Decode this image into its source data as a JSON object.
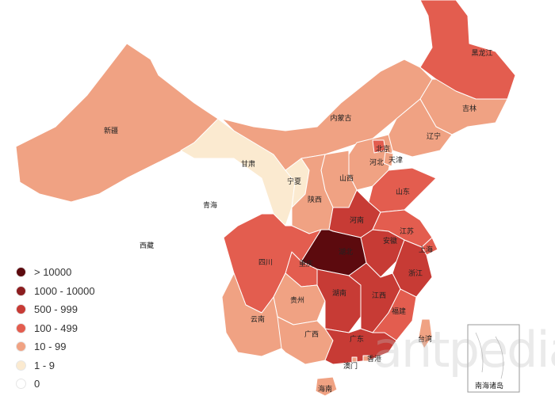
{
  "palette": {
    "gt10000": "#5c0a0e",
    "r1000_10000": "#8c1d1f",
    "r500_999": "#c73b35",
    "r100_499": "#e35d4f",
    "r10_99": "#f0a283",
    "r1_9": "#fbead0",
    "r0": "#ffffff"
  },
  "provinces": [
    {
      "name": "新疆",
      "tier": "r10_99"
    },
    {
      "name": "西藏",
      "tier": "r0"
    },
    {
      "name": "青海",
      "tier": "r0"
    },
    {
      "name": "甘肃",
      "tier": "r1_9"
    },
    {
      "name": "内蒙古",
      "tier": "r10_99"
    },
    {
      "name": "黑龙江",
      "tier": "r100_499"
    },
    {
      "name": "吉林",
      "tier": "r10_99"
    },
    {
      "name": "辽宁",
      "tier": "r10_99"
    },
    {
      "name": "北京",
      "tier": "r100_499"
    },
    {
      "name": "天津",
      "tier": "r10_99"
    },
    {
      "name": "河北",
      "tier": "r10_99"
    },
    {
      "name": "山西",
      "tier": "r10_99"
    },
    {
      "name": "宁夏",
      "tier": "r1_9"
    },
    {
      "name": "陕西",
      "tier": "r10_99"
    },
    {
      "name": "山东",
      "tier": "r100_499"
    },
    {
      "name": "河南",
      "tier": "r500_999"
    },
    {
      "name": "江苏",
      "tier": "r100_499"
    },
    {
      "name": "安徽",
      "tier": "r500_999"
    },
    {
      "name": "上海",
      "tier": "r100_499"
    },
    {
      "name": "湖北",
      "tier": "gt10000"
    },
    {
      "name": "浙江",
      "tier": "r500_999"
    },
    {
      "name": "四川",
      "tier": "r100_499"
    },
    {
      "name": "重庆",
      "tier": "r100_499"
    },
    {
      "name": "贵州",
      "tier": "r10_99"
    },
    {
      "name": "湖南",
      "tier": "r500_999"
    },
    {
      "name": "江西",
      "tier": "r500_999"
    },
    {
      "name": "福建",
      "tier": "r100_499"
    },
    {
      "name": "云南",
      "tier": "r10_99"
    },
    {
      "name": "广西",
      "tier": "r10_99"
    },
    {
      "name": "广东",
      "tier": "r500_999"
    },
    {
      "name": "台湾",
      "tier": "r10_99"
    },
    {
      "name": "澳门",
      "tier": "r10_99"
    },
    {
      "name": "香港",
      "tier": "r10_99"
    },
    {
      "name": "海南",
      "tier": "r10_99"
    }
  ],
  "inset_label": "南海诸岛",
  "legend": [
    {
      "label": "> 10000",
      "tier": "gt10000"
    },
    {
      "label": "1000 - 10000",
      "tier": "r1000_10000"
    },
    {
      "label": "500 - 999",
      "tier": "r500_999"
    },
    {
      "label": "100 - 499",
      "tier": "r100_499"
    },
    {
      "label": "10 - 99",
      "tier": "r10_99"
    },
    {
      "label": "1 - 9",
      "tier": "r1_9"
    },
    {
      "label": "0",
      "tier": "r0"
    }
  ],
  "watermark": "antpedia"
}
